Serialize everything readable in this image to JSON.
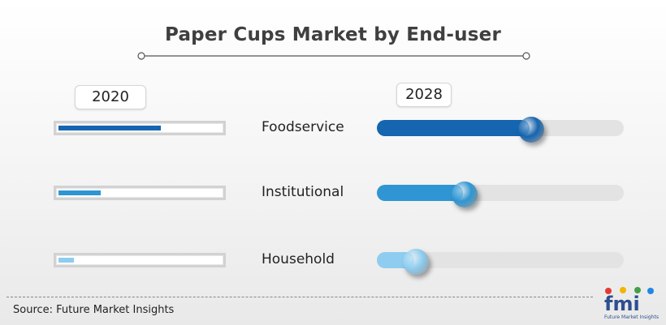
{
  "chart_data": {
    "type": "bar",
    "title": "Paper Cups Market by End-user",
    "categories": [
      "Foodservice",
      "Institutional",
      "Household"
    ],
    "series": [
      {
        "name": "2020",
        "values": [
          0.61,
          0.25,
          0.09
        ]
      },
      {
        "name": "2028",
        "values": [
          0.62,
          0.35,
          0.15
        ]
      }
    ],
    "colors": [
      "#1565b0",
      "#2f96d3",
      "#8ecdf0"
    ]
  },
  "source": "Source: Future Market Insights",
  "logo": {
    "text": "fmi",
    "tagline": "Future Market Insights"
  }
}
